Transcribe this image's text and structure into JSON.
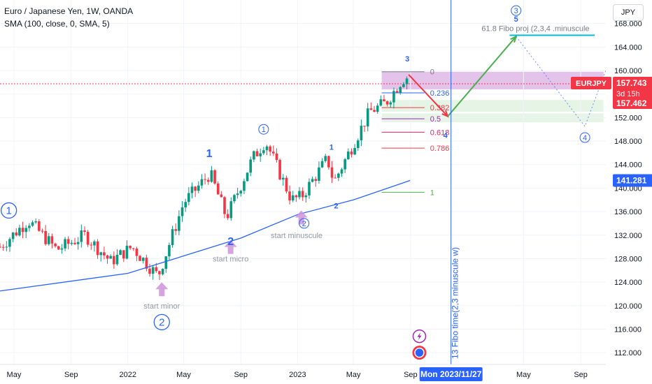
{
  "header": {
    "symbol_line": "Euro / Japanese Yen, 1W, OANDA",
    "indicator_line": "SMA (100, close, 0, SMA, 5)",
    "currency_button": "JPY"
  },
  "colors": {
    "bullish": "#089981",
    "bearish": "#f23645",
    "sma": "#2962ff",
    "arrow_up": "#4caf50",
    "arrow_down": "#f23645",
    "price_line": "#f23645",
    "marker_text": "#2962ff",
    "time_line": "#2962ff"
  },
  "chart_data": {
    "type": "candlestick",
    "title": "Euro / Japanese Yen, 1W, OANDA",
    "y_axis": {
      "range": [
        110,
        172
      ],
      "ticks": [
        "112.000",
        "116.000",
        "120.000",
        "124.000",
        "128.000",
        "132.000",
        "136.000",
        "140.000",
        "144.000",
        "148.000",
        "152.000",
        "156.000",
        "160.000",
        "164.000",
        "168.000"
      ]
    },
    "x_axis": {
      "range": [
        "2021-04-01",
        "2024-10-25"
      ],
      "ticks": [
        {
          "label": "May",
          "date": "2021-05-01"
        },
        {
          "label": "Sep",
          "date": "2021-09-01"
        },
        {
          "label": "2022",
          "date": "2022-01-01"
        },
        {
          "label": "May",
          "date": "2022-05-01"
        },
        {
          "label": "Sep",
          "date": "2022-09-01"
        },
        {
          "label": "2023",
          "date": "2023-01-01"
        },
        {
          "label": "May",
          "date": "2023-05-01"
        },
        {
          "label": "Sep",
          "date": "2023-09-01"
        },
        {
          "label": "May",
          "date": "2024-05-01"
        },
        {
          "label": "Sep",
          "date": "2024-09-01"
        }
      ]
    },
    "price_path": [
      {
        "date": "2021-04-01",
        "price": 130.0
      },
      {
        "date": "2021-06-01",
        "price": 134.5
      },
      {
        "date": "2021-08-01",
        "price": 129.5
      },
      {
        "date": "2021-10-01",
        "price": 132.0
      },
      {
        "date": "2021-11-25",
        "price": 127.5
      },
      {
        "date": "2022-01-10",
        "price": 130.0
      },
      {
        "date": "2022-03-07",
        "price": 125.0
      },
      {
        "date": "2022-05-01",
        "price": 137.5
      },
      {
        "date": "2022-06-27",
        "price": 142.5
      },
      {
        "date": "2022-08-01",
        "price": 135.0
      },
      {
        "date": "2022-09-26",
        "price": 145.0
      },
      {
        "date": "2022-10-24",
        "price": 148.0
      },
      {
        "date": "2022-12-19",
        "price": 138.0
      },
      {
        "date": "2023-01-09",
        "price": 138.5
      },
      {
        "date": "2023-03-06",
        "price": 145.0
      },
      {
        "date": "2023-03-20",
        "price": 141.0
      },
      {
        "date": "2023-06-05",
        "price": 153.0
      },
      {
        "date": "2023-07-10",
        "price": 154.5
      },
      {
        "date": "2023-08-14",
        "price": 158.5
      },
      {
        "date": "2023-08-28",
        "price": 159.0
      }
    ],
    "sma": {
      "name": "SMA (100, close, 0, SMA, 5)",
      "points": [
        {
          "date": "2021-04-01",
          "price": 122.5
        },
        {
          "date": "2022-01-01",
          "price": 125.5
        },
        {
          "date": "2022-09-01",
          "price": 131.5
        },
        {
          "date": "2023-01-01",
          "price": 135.5
        },
        {
          "date": "2023-05-01",
          "price": 138.0
        },
        {
          "date": "2023-08-31",
          "price": 141.3
        }
      ]
    },
    "price_labels": {
      "last": "157.743",
      "countdown": "3d 15h",
      "symbol": "EURJPY",
      "low": "157.462",
      "sma_value": "141.281",
      "current_price": 157.743,
      "time_label": "Mon 2023/11/27"
    },
    "fibonacci": {
      "start_date": "2023-07-01",
      "end_date": "2023-10-01",
      "levels": [
        {
          "ratio": "0",
          "price": 159.8,
          "color": "#787b86"
        },
        {
          "ratio": "0.236",
          "price": 156.2,
          "color": "#2962ff"
        },
        {
          "ratio": "0.382",
          "price": 153.7,
          "color": "#f23645"
        },
        {
          "ratio": "0.5",
          "price": 151.8,
          "color": "#9c27b0"
        },
        {
          "ratio": "0.618",
          "price": 149.5,
          "color": "#e91e63"
        },
        {
          "ratio": "0.786",
          "price": 146.8,
          "color": "#f23645"
        },
        {
          "ratio": "1",
          "price": 139.3,
          "color": "#4caf50"
        }
      ]
    },
    "zones": [
      {
        "from_date": "2023-07-01",
        "to_date": "2024-10-20",
        "low": 156.8,
        "high": 159.8,
        "color": "#9c27b0"
      },
      {
        "from_date": "2023-07-01",
        "to_date": "2024-10-20",
        "low": 153.0,
        "high": 155.0,
        "color": "#a5d6a7"
      },
      {
        "from_date": "2023-07-01",
        "to_date": "2024-10-20",
        "low": 151.2,
        "high": 152.7,
        "color": "#a5d6a7"
      }
    ],
    "fibo_projection": {
      "label": "61.8 Fibo proj (2,3,4 .minuscule",
      "price": 166.0,
      "from_date": "2024-04-01",
      "to_date": "2024-10-01"
    },
    "vertical_line": {
      "date": "2023-11-27",
      "label": "13 Fibo time(2,3 minuscule w)"
    },
    "arrows": [
      {
        "points": [
          [
            "2023-08-28",
            159.3
          ],
          [
            "2023-11-20",
            152.2
          ]
        ],
        "color": "#f23645"
      },
      {
        "points": [
          [
            "2023-11-20",
            152.2
          ],
          [
            "2024-04-15",
            165.8
          ]
        ],
        "color": "#4caf50"
      }
    ],
    "dotted_path": [
      [
        "2024-04-15",
        165.8
      ],
      [
        "2024-09-10",
        150.5
      ],
      [
        "2024-10-25",
        160.0
      ]
    ],
    "wave_labels": [
      {
        "text": "1",
        "date": "2021-04-20",
        "price": 136.2,
        "style": "circle-outline"
      },
      {
        "text": "2",
        "date": "2022-03-15",
        "price": 117.2,
        "style": "circle-outline"
      },
      {
        "text": "1",
        "date": "2022-06-25",
        "price": 146.0,
        "style": "plain-bold"
      },
      {
        "text": "1",
        "date": "2022-10-20",
        "price": 150.0,
        "style": "circle-small"
      },
      {
        "text": "2",
        "date": "2022-08-10",
        "price": 131.0,
        "style": "plain-bold"
      },
      {
        "text": "1",
        "date": "2023-03-15",
        "price": 147.0,
        "style": "plain-small"
      },
      {
        "text": "2",
        "date": "2023-01-15",
        "price": 134.0,
        "style": "circle-small"
      },
      {
        "text": "2",
        "date": "2023-03-25",
        "price": 137.0,
        "style": "plain-small"
      },
      {
        "text": "3",
        "date": "2023-08-25",
        "price": 162.0,
        "style": "plain-small"
      },
      {
        "text": "4",
        "date": "2023-11-15",
        "price": 149.0,
        "style": "plain-small"
      },
      {
        "text": "3",
        "date": "2024-04-15",
        "price": 170.2,
        "style": "circle-small"
      },
      {
        "text": "5",
        "date": "2024-04-15",
        "price": 168.8,
        "style": "plain-small"
      },
      {
        "text": "4",
        "date": "2024-09-10",
        "price": 148.6,
        "style": "circle-small"
      }
    ],
    "annotations": [
      {
        "text": "start minor",
        "date": "2022-03-15",
        "price": 119.5
      },
      {
        "text": "start micro",
        "date": "2022-08-10",
        "price": 127.5
      },
      {
        "text": "start minuscule",
        "date": "2022-12-30",
        "price": 131.5
      }
    ],
    "markers": [
      {
        "date": "2022-03-15",
        "price": 122.8
      },
      {
        "date": "2022-08-10",
        "price": 130.0
      },
      {
        "date": "2023-01-09",
        "price": 135.0
      }
    ],
    "icons": [
      {
        "name": "lightning-icon",
        "date": "2023-09-20",
        "price": 114.8
      },
      {
        "name": "flag-icon",
        "date": "2023-09-20",
        "price": 112.0
      }
    ]
  }
}
